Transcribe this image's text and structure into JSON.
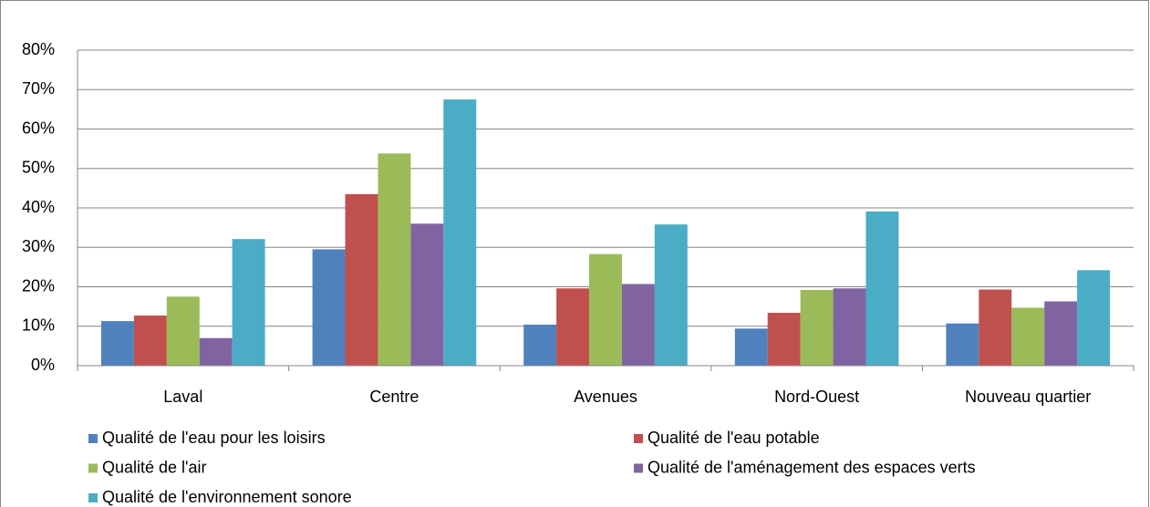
{
  "chart_data": {
    "type": "bar",
    "categories": [
      "Laval",
      "Centre",
      "Avenues",
      "Nord-Ouest",
      "Nouveau quartier"
    ],
    "series": [
      {
        "name": "Qualité de l'eau pour les loisirs",
        "color": "#4f81bd",
        "values": [
          11.3,
          29.5,
          10.4,
          9.4,
          10.7
        ]
      },
      {
        "name": "Qualité de l'eau potable",
        "color": "#c0504d",
        "values": [
          12.7,
          43.5,
          19.6,
          13.4,
          19.3
        ]
      },
      {
        "name": "Qualité de l'air",
        "color": "#9bbb59",
        "values": [
          17.5,
          53.8,
          28.3,
          19.2,
          14.7
        ]
      },
      {
        "name": "Qualité de l'aménagement des espaces verts",
        "color": "#8064a2",
        "values": [
          7.0,
          36.0,
          20.7,
          19.6,
          16.3
        ]
      },
      {
        "name": "Qualité de l'environnement sonore",
        "color": "#4bacc6",
        "values": [
          32.1,
          67.5,
          35.8,
          39.1,
          24.2
        ]
      }
    ],
    "ylim": [
      0,
      80
    ],
    "yticks": [
      {
        "value": 0,
        "label": "0%"
      },
      {
        "value": 10,
        "label": "10%"
      },
      {
        "value": 20,
        "label": "20%"
      },
      {
        "value": 30,
        "label": "30%"
      },
      {
        "value": 40,
        "label": "40%"
      },
      {
        "value": 50,
        "label": "50%"
      },
      {
        "value": 60,
        "label": "60%"
      },
      {
        "value": 70,
        "label": "70%"
      },
      {
        "value": 80,
        "label": "80%"
      }
    ],
    "grid": true,
    "legend": "bottom"
  }
}
